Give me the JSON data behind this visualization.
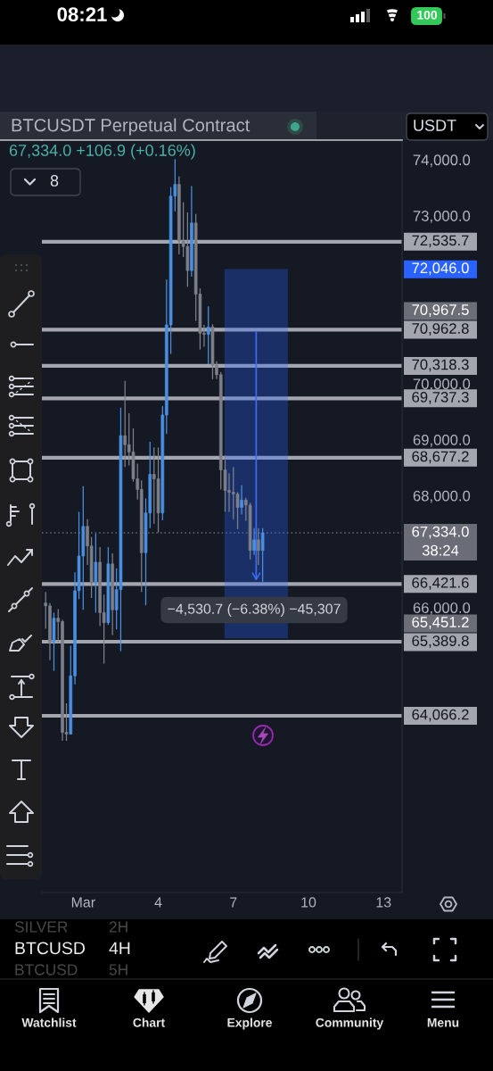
{
  "chart_data": {
    "type": "candlestick",
    "title": "BTCUSDT Perpetual Contract",
    "subtitle": "67,334.0 +106.9 (+0.16%)",
    "x": [
      -0.5,
      -0.33,
      -0.17,
      0,
      0.17,
      0.33,
      0.5,
      0.67,
      0.83,
      1,
      1.17,
      1.33,
      1.5,
      1.67,
      1.83,
      2,
      2.17,
      2.33,
      2.5,
      2.67,
      2.83,
      3,
      3.17,
      3.33,
      3.5,
      3.67,
      3.83,
      4,
      4.17,
      4.33,
      4.5,
      4.67,
      4.83,
      5,
      5.17,
      5.33,
      5.5,
      5.67,
      5.83,
      6,
      6.17,
      6.33,
      6.5,
      6.67,
      6.83,
      7,
      7.17,
      7.33,
      7.5,
      7.67,
      7.83,
      8,
      8.17
    ],
    "ohlc": [
      [
        66080,
        66280,
        65620,
        66030
      ],
      [
        66030,
        66080,
        65060,
        65380
      ],
      [
        65380,
        65910,
        64870,
        65810
      ],
      [
        65810,
        65970,
        65380,
        65750
      ],
      [
        65750,
        65780,
        63620,
        63770
      ],
      [
        63770,
        64290,
        63620,
        63740
      ],
      [
        63740,
        65320,
        63740,
        64780
      ],
      [
        64780,
        66630,
        64630,
        66300
      ],
      [
        66300,
        67710,
        66150,
        66920
      ],
      [
        66920,
        68170,
        65960,
        67450
      ],
      [
        67450,
        67580,
        66760,
        67100
      ],
      [
        67100,
        67260,
        66170,
        66440
      ],
      [
        66440,
        67320,
        65910,
        66810
      ],
      [
        66810,
        67080,
        65670,
        65910
      ],
      [
        65910,
        66230,
        65000,
        65730
      ],
      [
        65730,
        67080,
        65690,
        66780
      ],
      [
        66780,
        66970,
        65510,
        65960
      ],
      [
        65960,
        66700,
        65610,
        66320
      ],
      [
        66320,
        69570,
        65220,
        69070
      ],
      [
        69070,
        70050,
        68510,
        68910
      ],
      [
        68910,
        69470,
        68540,
        68780
      ],
      [
        68780,
        69200,
        68250,
        68300
      ],
      [
        68300,
        68570,
        67930,
        68110
      ],
      [
        68110,
        68270,
        66280,
        66980
      ],
      [
        66980,
        67950,
        66040,
        67690
      ],
      [
        67690,
        68960,
        67420,
        68380
      ],
      [
        68380,
        68860,
        67500,
        68300
      ],
      [
        68300,
        68860,
        67340,
        67690
      ],
      [
        67690,
        69600,
        67560,
        69440
      ],
      [
        69440,
        71860,
        69100,
        71050
      ],
      [
        71050,
        73510,
        70530,
        73350
      ],
      [
        73350,
        74010,
        73080,
        73560
      ],
      [
        73560,
        73700,
        72310,
        72550
      ],
      [
        72550,
        73240,
        72260,
        72450
      ],
      [
        72450,
        73060,
        71730,
        72020
      ],
      [
        72020,
        73530,
        71910,
        72870
      ],
      [
        72870,
        73030,
        71120,
        71600
      ],
      [
        71600,
        71700,
        70610,
        70900
      ],
      [
        70900,
        71050,
        70660,
        70880
      ],
      [
        70880,
        71380,
        70350,
        71010
      ],
      [
        71010,
        71060,
        70080,
        70330
      ],
      [
        70330,
        70400,
        70080,
        70160
      ],
      [
        70160,
        70210,
        68110,
        68460
      ],
      [
        68460,
        68720,
        67710,
        68090
      ],
      [
        68090,
        68400,
        67710,
        68060
      ],
      [
        68060,
        68510,
        67580,
        68030
      ],
      [
        68030,
        68060,
        67400,
        67790
      ],
      [
        67790,
        68190,
        67660,
        67920
      ],
      [
        67920,
        67960,
        67550,
        67830
      ],
      [
        67830,
        67870,
        66860,
        67020
      ],
      [
        67020,
        67420,
        66940,
        67210
      ],
      [
        67210,
        67420,
        66760,
        67020
      ],
      [
        67020,
        67420,
        66460,
        67334
      ]
    ],
    "colors": [
      "#7d8089",
      "#7d8089",
      "#4a90e2",
      "#7d8089",
      "#7d8089",
      "#7d8089",
      "#4a90e2",
      "#4a90e2",
      "#4a90e2",
      "#4a90e2",
      "#7d8089",
      "#7d8089",
      "#4a90e2",
      "#7d8089",
      "#7d8089",
      "#4a90e2",
      "#7d8089",
      "#4a90e2",
      "#4a90e2",
      "#7d8089",
      "#7d8089",
      "#7d8089",
      "#7d8089",
      "#7d8089",
      "#4a90e2",
      "#4a90e2",
      "#7d8089",
      "#7d8089",
      "#4a90e2",
      "#4a90e2",
      "#4a90e2",
      "#4a90e2",
      "#7d8089",
      "#7d8089",
      "#7d8089",
      "#4a90e2",
      "#7d8089",
      "#7d8089",
      "#7d8089",
      "#4a90e2",
      "#7d8089",
      "#7d8089",
      "#7d8089",
      "#7d8089",
      "#7d8089",
      "#7d8089",
      "#7d8089",
      "#4a90e2",
      "#7d8089",
      "#7d8089",
      "#4a90e2",
      "#7d8089",
      "#4a90e2"
    ],
    "xlim": [
      -0.65,
      13.74
    ],
    "ylim": [
      60910,
      74350
    ],
    "xticks": [
      {
        "value": 1,
        "label": "Mar"
      },
      4,
      7,
      10,
      13
    ],
    "yticks": [
      {
        "value": 74000,
        "label": "74,000.0"
      },
      {
        "value": 73000,
        "label": "73,000.0"
      },
      {
        "value": 70000,
        "label": "70,000.0"
      },
      {
        "value": 69000,
        "label": "69,000.0"
      },
      {
        "value": 68000,
        "label": "68,000.0"
      },
      {
        "value": 66000,
        "label": "66,000.0"
      }
    ],
    "ref_lines": [
      {
        "axis": "y",
        "value": 72535.7,
        "label": "72,535.7",
        "color": "#a3a6ae"
      },
      {
        "axis": "y",
        "value": 70962.8,
        "label": "70,962.8",
        "color": "#a3a6ae"
      },
      {
        "axis": "y",
        "value": 70318.3,
        "label": "70,318.3",
        "color": "#a3a6ae"
      },
      {
        "axis": "y",
        "value": 69737.3,
        "label": "69,737.3",
        "color": "#a3a6ae"
      },
      {
        "axis": "y",
        "value": 68677.2,
        "label": "68,677.2",
        "color": "#a3a6ae"
      },
      {
        "axis": "y",
        "value": 67334,
        "label": "67,334.0\n38:24",
        "color": "#6a6d78",
        "line_style": "dotted"
      },
      {
        "axis": "y",
        "value": 66421.6,
        "label": "66,421.6",
        "color": "#a3a6ae"
      },
      {
        "axis": "y",
        "value": 65389.8,
        "label": "65,389.8",
        "color": "#a3a6ae"
      },
      {
        "axis": "y",
        "value": 64066.2,
        "label": "64,066.2",
        "color": "#a3a6ae"
      }
    ],
    "bands": [
      {
        "axis": "y",
        "from": 65451.2,
        "to": 72046,
        "color": "#2962ff"
      }
    ],
    "annotations": [
      "08:21",
      "100",
      "USDT",
      "8",
      "72,046.0",
      "70,967.5",
      "−4,530.7 (−6.38%) −45,307",
      "65,451.2",
      "SILVER",
      "2H",
      "BTCUSD",
      "4H",
      "BTCUSD",
      "5H",
      "Watchlist",
      "Chart",
      "Explore",
      "Community",
      "Menu"
    ]
  }
}
